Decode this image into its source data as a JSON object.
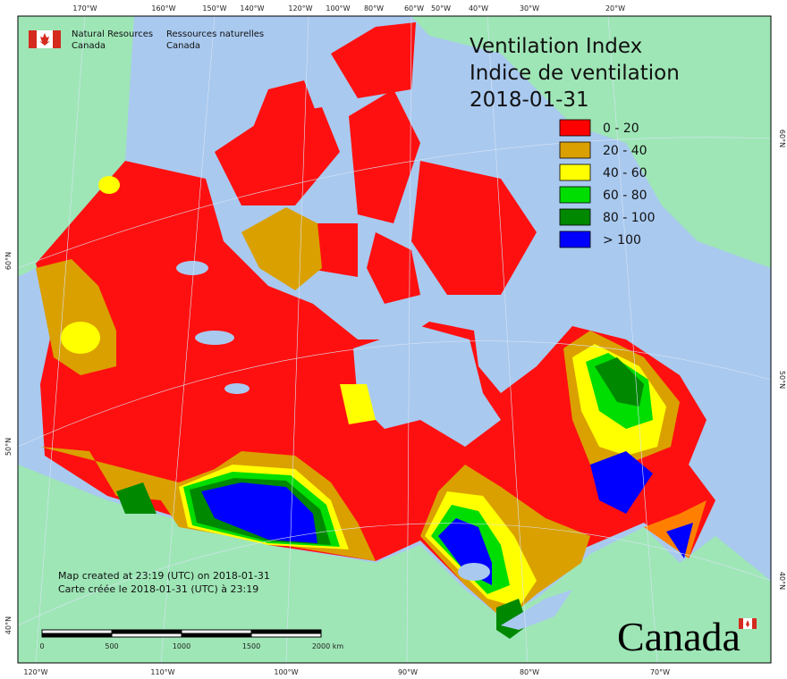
{
  "header": {
    "agency_en": [
      "Natural Resources",
      "Canada"
    ],
    "agency_fr": [
      "Ressources naturelles",
      "Canada"
    ]
  },
  "title": [
    "Ventilation Index",
    "Indice de ventilation",
    "2018-01-31"
  ],
  "legend": [
    {
      "label": "0 - 20",
      "color": "#ff0000"
    },
    {
      "label": "20 - 40",
      "color": "#daa000"
    },
    {
      "label": "40 - 60",
      "color": "#ffff00"
    },
    {
      "label": "60 - 80",
      "color": "#00dd00"
    },
    {
      "label": "80 - 100",
      "color": "#008800"
    },
    {
      "label": "> 100",
      "color": "#0000ff"
    }
  ],
  "graticule": {
    "top": [
      "170°W",
      "160°W",
      "150°W",
      "140°W",
      "120°W",
      "100°W",
      "80°W",
      "60°W",
      "50°W",
      "40°W",
      "30°W",
      "20°W"
    ],
    "bottom": [
      "120°W",
      "110°W",
      "100°W",
      "90°W",
      "80°W",
      "70°W"
    ],
    "left": [
      "60°N",
      "50°N",
      "40°N"
    ],
    "right": [
      "60°N",
      "50°N",
      "40°N"
    ]
  },
  "notes": [
    "Map created at 23:19 (UTC) on 2018-01-31",
    "Carte créée le 2018-01-31 (UTC) à 23:19"
  ],
  "scale_bar": [
    "0",
    "500",
    "1000",
    "1500",
    "2000",
    "km"
  ],
  "wordmark": "Canada"
}
